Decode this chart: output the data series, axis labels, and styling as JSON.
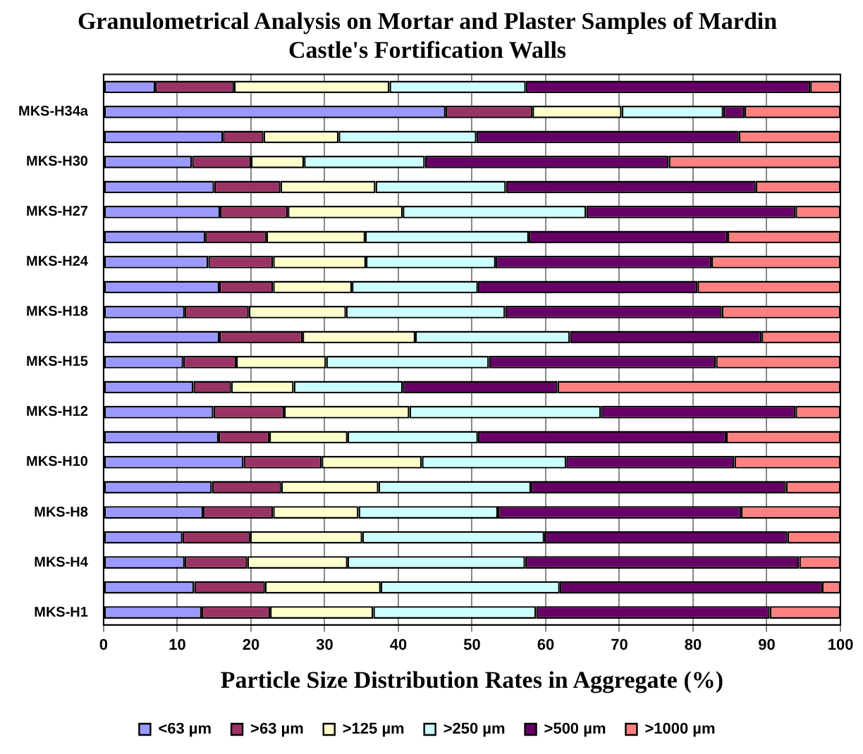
{
  "chart_data": {
    "type": "bar",
    "orientation": "horizontal",
    "stacked": true,
    "title": "Granulometrical Analysis on Mortar and Plaster Samples of Mardin Castle's Fortification Walls",
    "xlabel": "Particle Size Distribution Rates in Aggregate (%)",
    "categories": [
      null,
      "MKS-H34a",
      null,
      "MKS-H30",
      null,
      "MKS-H27",
      null,
      "MKS-H24",
      null,
      "MKS-H18",
      null,
      "MKS-H15",
      null,
      "MKS-H12",
      null,
      "MKS-H10",
      null,
      "MKS-H8",
      null,
      "MKS-H4",
      null,
      "MKS-H1"
    ],
    "series": [
      {
        "name": "<63 µm",
        "color": "#9999ff",
        "values": [
          7.0,
          46.4,
          16.2,
          12,
          15,
          15.8,
          13.8,
          14.2,
          15.7,
          11,
          15.7,
          10.8,
          12.2,
          14.9,
          15.6,
          19.0,
          14.7,
          13.5,
          10.7,
          11.0,
          12.3,
          13.3
        ]
      },
      {
        "name": ">63 µm",
        "color": "#993366",
        "values": [
          10.7,
          11.8,
          5.5,
          8,
          9,
          9.2,
          8.3,
          8.8,
          7.3,
          8.7,
          11.3,
          7.2,
          5.1,
          9.6,
          6.9,
          10.6,
          9.4,
          9.5,
          9.2,
          8.5,
          9.6,
          9.3
        ]
      },
      {
        "name": ">125 µm",
        "color": "#ffffcc",
        "values": [
          21.1,
          12.1,
          10.2,
          7.2,
          12.9,
          15.6,
          13.4,
          12.6,
          10.7,
          13.2,
          15.3,
          12.2,
          8.5,
          17.0,
          10.6,
          13.6,
          13.2,
          11.6,
          15.2,
          13.6,
          15.7,
          14.0
        ]
      },
      {
        "name": ">250 µm",
        "color": "#ccffff",
        "values": [
          18.5,
          13.8,
          18.7,
          16.4,
          17.7,
          24.9,
          22.2,
          17.6,
          17.1,
          21.6,
          21.0,
          22.1,
          14.8,
          26.0,
          17.7,
          19.6,
          20.7,
          18.9,
          24.7,
          24.1,
          24.3,
          22.1
        ]
      },
      {
        "name": ">500 µm",
        "color": "#660066",
        "values": [
          38.6,
          2.9,
          35.6,
          33.1,
          33.9,
          28.4,
          27.0,
          29.3,
          29.8,
          29.4,
          26.0,
          30.8,
          21.0,
          26.4,
          33.7,
          22.8,
          34.6,
          33.0,
          33.0,
          37.2,
          35.6,
          31.7
        ]
      },
      {
        "name": ">1000 µm",
        "color": "#ff8080",
        "values": [
          4.1,
          13.0,
          13.8,
          23.3,
          11.5,
          6.1,
          15.3,
          17.5,
          19.4,
          16.1,
          10.7,
          16.9,
          38.4,
          6.1,
          15.5,
          14.4,
          7.4,
          13.5,
          7.2,
          5.6,
          2.5,
          9.6
        ]
      }
    ],
    "xlim": [
      0,
      100
    ],
    "xticks": [
      0,
      10,
      20,
      30,
      40,
      50,
      60,
      70,
      80,
      90,
      100
    ],
    "grid": "x",
    "legend": "bottom"
  }
}
